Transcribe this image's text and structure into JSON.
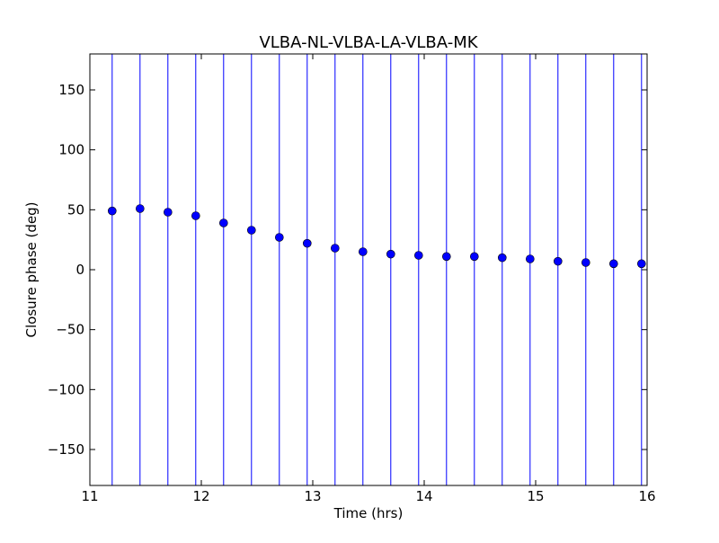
{
  "chart_data": {
    "type": "scatter",
    "title": "VLBA-NL-VLBA-LA-VLBA-MK",
    "xlabel": "Time (hrs)",
    "ylabel": "Closure phase (deg)",
    "xlim": [
      11,
      16
    ],
    "ylim": [
      -180,
      180
    ],
    "xticks": [
      11,
      12,
      13,
      14,
      15,
      16
    ],
    "xtick_labels": [
      "11",
      "12",
      "13",
      "14",
      "15",
      "16"
    ],
    "yticks": [
      -150,
      -100,
      -50,
      0,
      50,
      100,
      150
    ],
    "ytick_labels": [
      "−150",
      "−100",
      "−50",
      "0",
      "50",
      "100",
      "150"
    ],
    "grid": false,
    "legend": "none",
    "series": [
      {
        "marker": "circle",
        "color": "#0000ff",
        "errorbar_color": "#0000ff",
        "errorbars_span_full_axis": true,
        "points": [
          {
            "x": 11.2,
            "y": 49
          },
          {
            "x": 11.45,
            "y": 51
          },
          {
            "x": 11.7,
            "y": 48
          },
          {
            "x": 11.95,
            "y": 45
          },
          {
            "x": 12.2,
            "y": 39
          },
          {
            "x": 12.45,
            "y": 33
          },
          {
            "x": 12.7,
            "y": 27
          },
          {
            "x": 12.95,
            "y": 22
          },
          {
            "x": 13.2,
            "y": 18
          },
          {
            "x": 13.45,
            "y": 15
          },
          {
            "x": 13.7,
            "y": 13
          },
          {
            "x": 13.95,
            "y": 12
          },
          {
            "x": 14.2,
            "y": 11
          },
          {
            "x": 14.45,
            "y": 11
          },
          {
            "x": 14.7,
            "y": 10
          },
          {
            "x": 14.95,
            "y": 9
          },
          {
            "x": 15.2,
            "y": 7
          },
          {
            "x": 15.45,
            "y": 6
          },
          {
            "x": 15.7,
            "y": 5
          },
          {
            "x": 15.95,
            "y": 5
          }
        ]
      }
    ]
  }
}
